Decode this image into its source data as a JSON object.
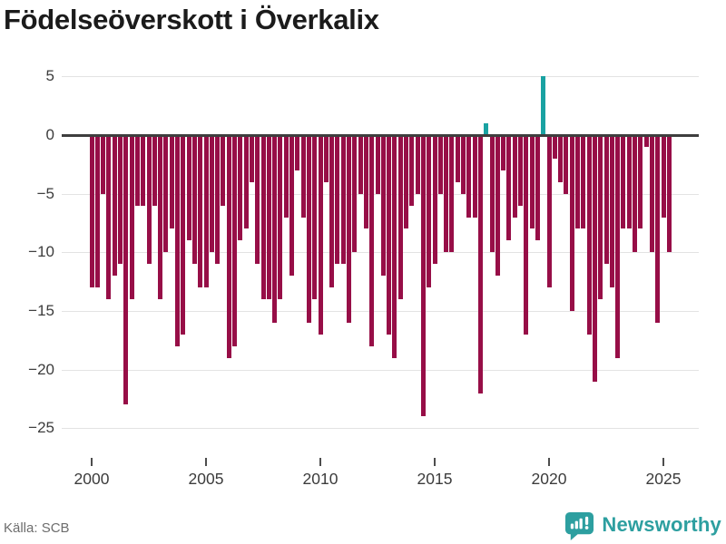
{
  "title": "Födelseöverskott i Överkalix",
  "source": "Källa: SCB",
  "branding": {
    "name": "Newsworthy"
  },
  "colors": {
    "negative_bar": "#970e47",
    "positive_bar": "#19a2a2",
    "grid": "#e3e3e3",
    "zero_line": "#3e3e3e",
    "axis_text": "#3c3c3c",
    "title_text": "#1b1b1b",
    "source_text": "#6d6d6d",
    "logo_teal": "#2d9fa0",
    "background": "#ffffff"
  },
  "chart_data": {
    "type": "bar",
    "title": "Födelseöverskott i Överkalix",
    "frequency": "quarterly",
    "start": "2000-Q1",
    "end": "2025-Q2",
    "xlabel": "",
    "ylabel": "",
    "ylim": [
      -26.5,
      6
    ],
    "grid": true,
    "legend": "none",
    "y_ticks": [
      5,
      0,
      -5,
      -10,
      -15,
      -20,
      -25
    ],
    "x_tick_years": [
      2000,
      2005,
      2010,
      2015,
      2020,
      2025
    ],
    "series": [
      {
        "year": 2000,
        "values": [
          -13,
          -13,
          -5,
          -14
        ]
      },
      {
        "year": 2001,
        "values": [
          -12,
          -11,
          -23,
          -14
        ]
      },
      {
        "year": 2002,
        "values": [
          -6,
          -6,
          -11,
          -6
        ]
      },
      {
        "year": 2003,
        "values": [
          -14,
          -10,
          -8,
          -18
        ]
      },
      {
        "year": 2004,
        "values": [
          -17,
          -9,
          -11,
          -13
        ]
      },
      {
        "year": 2005,
        "values": [
          -13,
          -10,
          -11,
          -6
        ]
      },
      {
        "year": 2006,
        "values": [
          -19,
          -18,
          -9,
          -8
        ]
      },
      {
        "year": 2007,
        "values": [
          -4,
          -11,
          -14,
          -14
        ]
      },
      {
        "year": 2008,
        "values": [
          -16,
          -14,
          -7,
          -12
        ]
      },
      {
        "year": 2009,
        "values": [
          -3,
          -7,
          -16,
          -14
        ]
      },
      {
        "year": 2010,
        "values": [
          -17,
          -4,
          -13,
          -11
        ]
      },
      {
        "year": 2011,
        "values": [
          -11,
          -16,
          -10,
          -5
        ]
      },
      {
        "year": 2012,
        "values": [
          -8,
          -18,
          -5,
          -12
        ]
      },
      {
        "year": 2013,
        "values": [
          -17,
          -19,
          -14,
          -8
        ]
      },
      {
        "year": 2014,
        "values": [
          -6,
          -5,
          -24,
          -13
        ]
      },
      {
        "year": 2015,
        "values": [
          -11,
          -5,
          -10,
          -10
        ]
      },
      {
        "year": 2016,
        "values": [
          -4,
          -5,
          -7,
          -7
        ]
      },
      {
        "year": 2017,
        "values": [
          -22,
          1,
          -10,
          -12
        ]
      },
      {
        "year": 2018,
        "values": [
          -3,
          -9,
          -7,
          -6
        ]
      },
      {
        "year": 2019,
        "values": [
          -17,
          -8,
          -9,
          5
        ]
      },
      {
        "year": 2020,
        "values": [
          -13,
          -2,
          -4,
          -5
        ]
      },
      {
        "year": 2021,
        "values": [
          -15,
          -8,
          -8,
          -17
        ]
      },
      {
        "year": 2022,
        "values": [
          -21,
          -14,
          -11,
          -13
        ]
      },
      {
        "year": 2023,
        "values": [
          -19,
          -8,
          -8,
          -10
        ]
      },
      {
        "year": 2024,
        "values": [
          -8,
          -1,
          -10,
          -16
        ]
      },
      {
        "year": 2025,
        "values": [
          -7,
          -10
        ]
      }
    ]
  }
}
